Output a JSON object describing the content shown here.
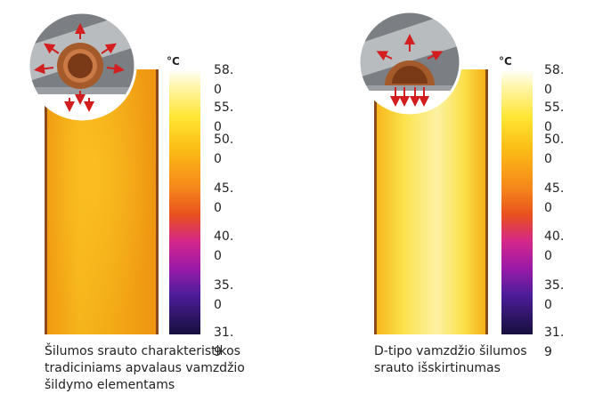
{
  "panels": [
    {
      "unit": "°C",
      "scale": [
        "58.0",
        "55.0",
        "50.0",
        "45.0",
        "40.0",
        "35.0",
        "31.9"
      ],
      "caption": [
        "Šilumos srauto charakteristikos",
        "tradiciniams apvalaus vamzdžio",
        "šildymo elementams"
      ]
    },
    {
      "unit": "°C",
      "scale": [
        "58.0",
        "55.0",
        "50.0",
        "45.0",
        "40.0",
        "35.0",
        "31.9"
      ],
      "caption": [
        "D-tipo vamzdžio šilumos",
        "srauto išskirtinumas"
      ]
    }
  ]
}
